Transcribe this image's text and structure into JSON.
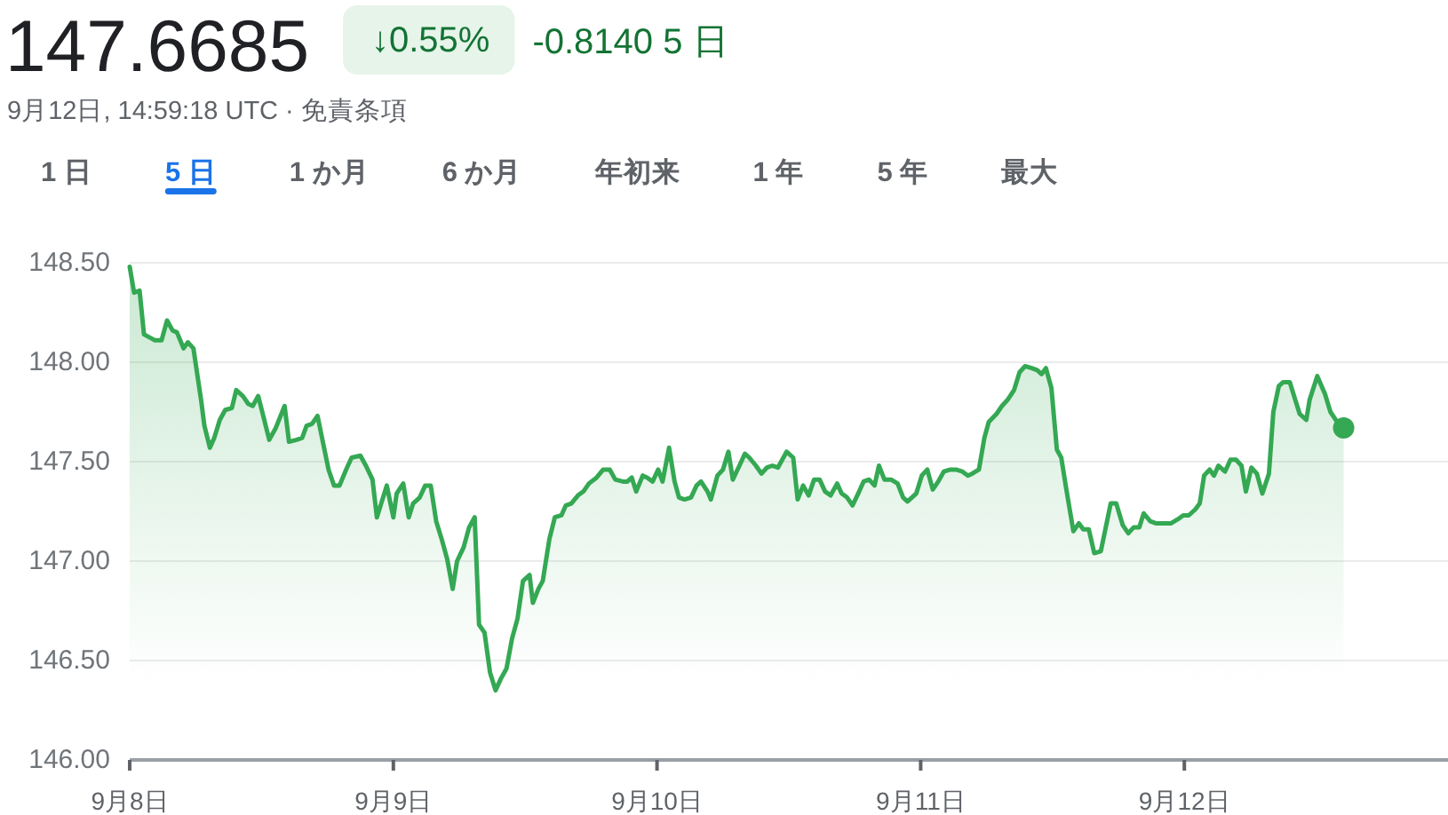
{
  "chart_data": {
    "type": "area",
    "title": "147.6685",
    "subtitle": "9月12日, 14:59:18 UTC · 免責条項",
    "annotations": [
      "↓0.55%",
      "-0.8140 5 日",
      "1 日",
      "5 日",
      "1 か月",
      "6 か月",
      "年初来",
      "1 年",
      "5 年",
      "最大"
    ],
    "x": [
      "--09-08T00:00",
      "--09-08T00:24",
      "--09-08T00:54",
      "--09-08T01:18",
      "--09-08T02:18",
      "--09-08T02:54",
      "--09-08T03:24",
      "--09-08T03:54",
      "--09-08T04:18",
      "--09-08T04:54",
      "--09-08T05:18",
      "--09-08T05:48",
      "--09-08T06:30",
      "--09-08T06:48",
      "--09-08T07:18",
      "--09-08T07:42",
      "--09-08T08:12",
      "--09-08T08:42",
      "--09-08T09:18",
      "--09-08T09:42",
      "--09-08T10:18",
      "--09-08T10:48",
      "--09-08T11:12",
      "--09-08T11:42",
      "--09-08T12:12",
      "--09-08T12:42",
      "--09-08T13:18",
      "--09-08T14:06",
      "--09-08T14:30",
      "--09-08T15:12",
      "--09-08T15:42",
      "--09-08T16:06",
      "--09-08T16:36",
      "--09-08T17:06",
      "--09-08T18:06",
      "--09-08T18:36",
      "--09-08T19:06",
      "--09-08T19:42",
      "--09-08T20:12",
      "--09-08T21:00",
      "--09-08T21:30",
      "--09-08T22:06",
      "--09-08T22:30",
      "--09-08T23:24",
      "--09-09T00:00",
      "--09-09T00:18",
      "--09-09T00:54",
      "--09-09T01:24",
      "--09-09T01:48",
      "--09-09T02:24",
      "--09-09T02:54",
      "--09-09T03:24",
      "--09-09T03:54",
      "--09-09T04:24",
      "--09-09T04:54",
      "--09-09T05:24",
      "--09-09T05:48",
      "--09-09T06:24",
      "--09-09T06:54",
      "--09-09T07:24",
      "--09-09T07:48",
      "--09-09T08:18",
      "--09-09T08:48",
      "--09-09T09:18",
      "--09-09T09:48",
      "--09-09T10:18",
      "--09-09T10:48",
      "--09-09T11:18",
      "--09-09T11:48",
      "--09-09T12:24",
      "--09-09T12:42",
      "--09-09T13:12",
      "--09-09T13:36",
      "--09-09T14:12",
      "--09-09T14:42",
      "--09-09T15:18",
      "--09-09T15:42",
      "--09-09T16:12",
      "--09-09T16:48",
      "--09-09T17:18",
      "--09-09T17:48",
      "--09-09T18:30",
      "--09-09T19:06",
      "--09-09T19:42",
      "--09-09T20:12",
      "--09-09T20:54",
      "--09-09T21:18",
      "--09-09T21:42",
      "--09-09T22:06",
      "--09-09T22:42",
      "--09-09T23:06",
      "--09-09T23:36",
      "--09-10T00:06",
      "--09-10T00:30",
      "--09-10T01:06",
      "--09-10T01:36",
      "--09-10T02:00",
      "--09-10T02:30",
      "--09-10T03:06",
      "--09-10T03:36",
      "--09-10T04:00",
      "--09-10T04:36",
      "--09-10T04:54",
      "--09-10T05:30",
      "--09-10T06:00",
      "--09-10T06:30",
      "--09-10T06:54",
      "--09-10T07:30",
      "--09-10T08:00",
      "--09-10T08:24",
      "--09-10T09:00",
      "--09-10T09:30",
      "--09-10T10:00",
      "--09-10T10:30",
      "--09-10T11:00",
      "--09-10T11:24",
      "--09-10T11:48",
      "--09-10T12:24",
      "--09-10T12:48",
      "--09-10T13:18",
      "--09-10T13:48",
      "--09-10T14:18",
      "--09-10T14:48",
      "--09-10T15:18",
      "--09-10T15:48",
      "--09-10T16:24",
      "--09-10T16:48",
      "--09-10T17:18",
      "--09-10T17:48",
      "--09-10T18:24",
      "--09-10T18:48",
      "--09-10T19:18",
      "--09-10T19:48",
      "--09-10T20:12",
      "--09-10T20:42",
      "--09-10T21:18",
      "--09-10T21:54",
      "--09-10T22:24",
      "--09-10T22:48",
      "--09-10T23:36",
      "--09-11T00:06",
      "--09-11T00:36",
      "--09-11T01:06",
      "--09-11T01:36",
      "--09-11T02:06",
      "--09-11T02:42",
      "--09-11T03:12",
      "--09-11T03:48",
      "--09-11T04:18",
      "--09-11T04:42",
      "--09-11T05:18",
      "--09-11T05:48",
      "--09-11T06:12",
      "--09-11T06:54",
      "--09-11T07:24",
      "--09-11T07:54",
      "--09-11T08:30",
      "--09-11T09:00",
      "--09-11T09:30",
      "--09-11T10:06",
      "--09-11T10:36",
      "--09-11T11:00",
      "--09-11T11:24",
      "--09-11T11:54",
      "--09-11T12:24",
      "--09-11T12:48",
      "--09-11T13:12",
      "--09-11T13:54",
      "--09-11T14:24",
      "--09-11T14:48",
      "--09-11T15:18",
      "--09-11T15:48",
      "--09-11T16:24",
      "--09-11T17:18",
      "--09-11T17:48",
      "--09-11T18:24",
      "--09-11T18:54",
      "--09-11T19:24",
      "--09-11T19:54",
      "--09-11T20:18",
      "--09-11T20:54",
      "--09-11T21:24",
      "--09-11T22:18",
      "--09-11T22:48",
      "--09-11T23:24",
      "--09-11T23:54",
      "--09-12T00:24",
      "--09-12T01:00",
      "--09-12T01:24",
      "--09-12T01:48",
      "--09-12T02:18",
      "--09-12T02:42",
      "--09-12T03:06",
      "--09-12T03:42",
      "--09-12T04:12",
      "--09-12T04:42",
      "--09-12T05:12",
      "--09-12T05:36",
      "--09-12T06:06",
      "--09-12T06:36",
      "--09-12T07:06",
      "--09-12T07:42",
      "--09-12T08:06",
      "--09-12T08:36",
      "--09-12T09:00",
      "--09-12T09:36",
      "--09-12T10:06",
      "--09-12T10:30",
      "--09-12T11:06",
      "--09-12T11:24",
      "--09-12T12:06",
      "--09-12T12:48",
      "--09-12T13:18",
      "--09-12T13:54",
      "--09-12T14:30"
    ],
    "series": [
      {
        "color": "#34a853",
        "values": [
          148.48,
          148.35,
          148.36,
          148.14,
          148.11,
          148.11,
          148.21,
          148.16,
          148.15,
          148.07,
          148.1,
          148.07,
          147.81,
          147.68,
          147.57,
          147.62,
          147.71,
          147.76,
          147.77,
          147.86,
          147.83,
          147.79,
          147.78,
          147.83,
          147.72,
          147.61,
          147.67,
          147.78,
          147.6,
          147.61,
          147.62,
          147.68,
          147.69,
          147.73,
          147.46,
          147.38,
          147.38,
          147.46,
          147.52,
          147.53,
          147.48,
          147.41,
          147.22,
          147.38,
          147.22,
          147.34,
          147.39,
          147.22,
          147.29,
          147.32,
          147.38,
          147.38,
          147.2,
          147.11,
          147.01,
          146.86,
          147.0,
          147.07,
          147.17,
          147.22,
          146.68,
          146.64,
          146.44,
          146.35,
          146.41,
          146.46,
          146.61,
          146.71,
          146.9,
          146.93,
          146.79,
          146.86,
          146.9,
          147.11,
          147.22,
          147.23,
          147.28,
          147.29,
          147.33,
          147.35,
          147.39,
          147.42,
          147.46,
          147.46,
          147.41,
          147.4,
          147.4,
          147.42,
          147.35,
          147.43,
          147.42,
          147.4,
          147.46,
          147.4,
          147.57,
          147.4,
          147.32,
          147.31,
          147.32,
          147.38,
          147.4,
          147.35,
          147.31,
          147.43,
          147.46,
          147.55,
          147.41,
          147.48,
          147.54,
          147.52,
          147.48,
          147.44,
          147.47,
          147.48,
          147.47,
          147.51,
          147.55,
          147.52,
          147.31,
          147.38,
          147.33,
          147.41,
          147.41,
          147.35,
          147.33,
          147.39,
          147.34,
          147.32,
          147.28,
          147.35,
          147.4,
          147.41,
          147.38,
          147.48,
          147.41,
          147.41,
          147.39,
          147.32,
          147.3,
          147.34,
          147.43,
          147.46,
          147.36,
          147.4,
          147.45,
          147.46,
          147.46,
          147.45,
          147.43,
          147.44,
          147.46,
          147.62,
          147.7,
          147.74,
          147.78,
          147.81,
          147.86,
          147.95,
          147.98,
          147.97,
          147.96,
          147.94,
          147.97,
          147.87,
          147.56,
          147.52,
          147.38,
          147.15,
          147.19,
          147.16,
          147.16,
          147.04,
          147.05,
          147.29,
          147.29,
          147.18,
          147.14,
          147.17,
          147.17,
          147.24,
          147.2,
          147.19,
          147.19,
          147.19,
          147.21,
          147.23,
          147.23,
          147.26,
          147.29,
          147.43,
          147.46,
          147.43,
          147.48,
          147.45,
          147.51,
          147.51,
          147.48,
          147.35,
          147.47,
          147.44,
          147.34,
          147.44,
          147.75,
          147.88,
          147.9,
          147.9,
          147.81,
          147.74,
          147.71,
          147.81,
          147.93,
          147.84,
          147.75,
          147.7,
          147.67
        ]
      },
      {
        "type": "scatter",
        "color": "#34a853",
        "marker": "circle",
        "x": [
          "--09-12T14:30"
        ],
        "values": [
          147.67
        ]
      }
    ],
    "xlim": [
      "--09-08T00:00",
      "--09-13T00:00"
    ],
    "xticks": [
      {
        "value": "--09-08",
        "label": "9月8日"
      },
      {
        "value": "--09-09",
        "label": "9月9日"
      },
      {
        "value": "--09-10",
        "label": "9月10日"
      },
      {
        "value": "--09-11",
        "label": "9月11日"
      },
      {
        "value": "--09-12",
        "label": "9月12日"
      }
    ],
    "ylim": [
      146,
      148.5
    ],
    "yticks": [
      {
        "value": 146,
        "label": "146.00"
      },
      {
        "value": 146.5,
        "label": "146.50"
      },
      {
        "value": 147,
        "label": "147.00"
      },
      {
        "value": 147.5,
        "label": "147.50"
      },
      {
        "value": 148,
        "label": "148.00"
      },
      {
        "value": 148.5,
        "label": "148.50"
      }
    ],
    "grid": "y"
  }
}
